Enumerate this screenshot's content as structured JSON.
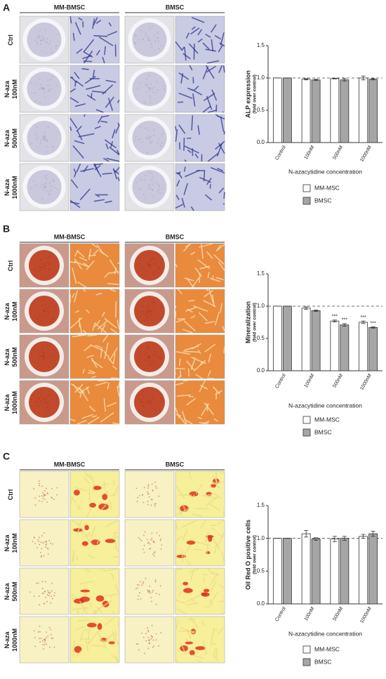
{
  "panels": [
    {
      "letter": "A",
      "columns": [
        "MM-BMSC",
        "BMSC"
      ],
      "rows": [
        [
          "Ctrl"
        ],
        [
          "N-aza",
          "100nM"
        ],
        [
          "N-aza",
          "500nM"
        ],
        [
          "N-aza",
          "1000nM"
        ]
      ]
    },
    {
      "letter": "B",
      "columns": [
        "MM-BMSC",
        "BMSC"
      ],
      "rows": [
        [
          "Ctrl"
        ],
        [
          "N-aza",
          "100nM"
        ],
        [
          "N-aza",
          "500nM"
        ],
        [
          "N-aza",
          "1000nM"
        ]
      ]
    },
    {
      "letter": "C",
      "columns": [
        "MM-BMSC",
        "BMSC"
      ],
      "rows": [
        [
          "Ctrl"
        ],
        [
          "N-aza",
          "100nM"
        ],
        [
          "N-aza",
          "500nM"
        ],
        [
          "N-aza",
          "1000nM"
        ]
      ]
    }
  ],
  "chart_data": [
    {
      "type": "bar",
      "y_label": "ALP expression",
      "y_sublabel": "(fold over control)",
      "x_label": "N-azacytidine concentration",
      "categories": [
        "Control",
        "100nM",
        "500nM",
        "1000nM"
      ],
      "series": [
        {
          "name": "MM-MSC",
          "color": "#ffffff",
          "values": [
            1,
            0.98,
            0.99,
            1.0
          ],
          "errors": [
            0,
            0.01,
            0.005,
            0.03
          ]
        },
        {
          "name": "BMSC",
          "color": "#a6a6a6",
          "values": [
            1,
            0.97,
            0.97,
            0.98
          ],
          "errors": [
            0,
            0.01,
            0.02,
            0.01
          ]
        }
      ],
      "ylim": [
        0,
        1.5
      ],
      "yticks": [
        {
          "value": 0,
          "label": "0.0"
        },
        0.5,
        {
          "value": 1,
          "label": "1.0"
        },
        1.5
      ],
      "reference_line": 1,
      "grid": false
    },
    {
      "type": "bar",
      "y_label": "Mineralization",
      "y_sublabel": "(fold over control)",
      "x_label": "N-azacytidine concentration",
      "categories": [
        "Control",
        "100nM",
        "500nM",
        "1000nM"
      ],
      "series": [
        {
          "name": "MM-MSC",
          "color": "#ffffff",
          "values": [
            1,
            0.97,
            0.77,
            0.75
          ],
          "errors": [
            0,
            0.02,
            0.015,
            0.02
          ],
          "significance": [
            null,
            null,
            "***",
            "***"
          ]
        },
        {
          "name": "BMSC",
          "color": "#a6a6a6",
          "values": [
            1,
            0.93,
            0.71,
            0.67
          ],
          "errors": [
            0,
            0.01,
            0.02,
            0.01
          ],
          "significance": [
            null,
            null,
            "***",
            "***"
          ]
        }
      ],
      "ylim": [
        0,
        1.5
      ],
      "yticks": [
        {
          "value": 0,
          "label": "0.0"
        },
        0.5,
        {
          "value": 1,
          "label": "1.0"
        },
        1.5
      ],
      "reference_line": 1,
      "grid": false
    },
    {
      "type": "bar",
      "y_label": "Oil Red O positive cells",
      "y_sublabel": "(fold over control)",
      "x_label": "N-azacytidine concentration",
      "categories": [
        "Control",
        "100nM",
        "500nM",
        "1000nM"
      ],
      "series": [
        {
          "name": "MM-MSC",
          "color": "#ffffff",
          "values": [
            1,
            1.07,
            0.99,
            1.03
          ],
          "errors": [
            0,
            0.05,
            0.04,
            0.03
          ]
        },
        {
          "name": "BMSC",
          "color": "#a6a6a6",
          "values": [
            1,
            0.99,
            1.0,
            1.07
          ],
          "errors": [
            0,
            0.02,
            0.03,
            0.04
          ]
        }
      ],
      "ylim": [
        0,
        1.5
      ],
      "yticks": [
        {
          "value": 0,
          "label": "0.0"
        },
        0.5,
        {
          "value": 1,
          "label": "1.0"
        },
        1.5
      ],
      "reference_line": 1,
      "grid": false
    }
  ]
}
